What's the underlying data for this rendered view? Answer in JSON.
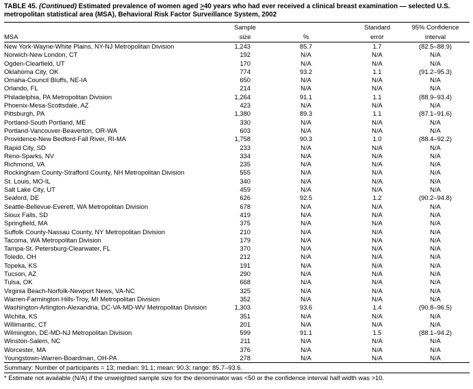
{
  "title": {
    "label": "TABLE 45.",
    "continued": "(Continued)",
    "before_ge": " Estimated prevalence of women aged ",
    "ge": ">",
    "after_ge": "40 years who had ever received a clinical breast examination — selected U.S. metropolitan statistical area (MSA), Behavioral Risk Factor Surveillance System, 2002"
  },
  "table": {
    "header": {
      "msa": "MSA",
      "sample_line1": "Sample",
      "sample_line2": "size",
      "percent": "%",
      "se_line1": "Standard",
      "se_line2": "error",
      "ci_line1": "95% Confidence",
      "ci_line2": "interval"
    },
    "rows": [
      {
        "msa": "New York-Wayne-White Plains, NY-NJ Metropolitan Division",
        "n": "1,243",
        "pct": "85.7",
        "se": "1.7",
        "ci": "(82.5–88.9)"
      },
      {
        "msa": "Norwich-New London, CT",
        "n": "192",
        "pct": "N/A",
        "se": "N/A",
        "ci": "N/A"
      },
      {
        "msa": "Ogden-Clearfield, UT",
        "n": "170",
        "pct": "N/A",
        "se": "N/A",
        "ci": "N/A"
      },
      {
        "msa": "Oklahoma City, OK",
        "n": "774",
        "pct": "93.2",
        "se": "1.1",
        "ci": "(91.2–95.3)"
      },
      {
        "msa": "Omaha-Council Bluffs, NE-IA",
        "n": "650",
        "pct": "N/A",
        "se": "N/A",
        "ci": "N/A"
      },
      {
        "msa": "Orlando, FL",
        "n": "214",
        "pct": "N/A",
        "se": "N/A",
        "ci": "N/A"
      },
      {
        "msa": "Philadelphia, PA Metropolitan Division",
        "n": "1,264",
        "pct": "91.1",
        "se": "1.1",
        "ci": "(88.9–93.4)"
      },
      {
        "msa": "Phoenix-Mesa-Scottsdale, AZ",
        "n": "423",
        "pct": "N/A",
        "se": "N/A",
        "ci": "N/A"
      },
      {
        "msa": "Pittsburgh, PA",
        "n": "1,380",
        "pct": "89.3",
        "se": "1.1",
        "ci": "(87.1–91.6)"
      },
      {
        "msa": "Portland-South Portland, ME",
        "n": "330",
        "pct": "N/A",
        "se": "N/A",
        "ci": "N/A"
      },
      {
        "msa": "Portland-Vancouver-Beaverton, OR-WA",
        "n": "603",
        "pct": "N/A",
        "se": "N/A",
        "ci": "N/A"
      },
      {
        "msa": "Providence-New Bedford-Fall River, RI-MA",
        "n": "1,758",
        "pct": "90.3",
        "se": "1.0",
        "ci": "(88.4–92.2)"
      },
      {
        "msa": "Rapid City, SD",
        "n": "233",
        "pct": "N/A",
        "se": "N/A",
        "ci": "N/A"
      },
      {
        "msa": "Reno-Sparks, NV",
        "n": "334",
        "pct": "N/A",
        "se": "N/A",
        "ci": "N/A"
      },
      {
        "msa": "Richmond, VA",
        "n": "235",
        "pct": "N/A",
        "se": "N/A",
        "ci": "N/A"
      },
      {
        "msa": "Rockingham County-Strafford County, NH Metropolitan Division",
        "n": "555",
        "pct": "N/A",
        "se": "N/A",
        "ci": "N/A"
      },
      {
        "msa": "St. Louis, MO-IL",
        "n": "340",
        "pct": "N/A",
        "se": "N/A",
        "ci": "N/A"
      },
      {
        "msa": "Salt Lake City, UT",
        "n": "459",
        "pct": "N/A",
        "se": "N/A",
        "ci": "N/A"
      },
      {
        "msa": "Seaford, DE",
        "n": "626",
        "pct": "92.5",
        "se": "1.2",
        "ci": "(90.2–94.8)"
      },
      {
        "msa": "Seattle-Bellevue-Everett, WA Metropolitan Division",
        "n": "678",
        "pct": "N/A",
        "se": "N/A",
        "ci": "N/A"
      },
      {
        "msa": "Sioux Falls, SD",
        "n": "419",
        "pct": "N/A",
        "se": "N/A",
        "ci": "N/A"
      },
      {
        "msa": "Springfield, MA",
        "n": "375",
        "pct": "N/A",
        "se": "N/A",
        "ci": "N/A"
      },
      {
        "msa": "Suffolk County-Nassau County, NY Metropolitan Division",
        "n": "210",
        "pct": "N/A",
        "se": "N/A",
        "ci": "N/A"
      },
      {
        "msa": "Tacoma, WA Metropolitan Division",
        "n": "179",
        "pct": "N/A",
        "se": "N/A",
        "ci": "N/A"
      },
      {
        "msa": "Tampa-St. Petersburg-Clearwater, FL",
        "n": "370",
        "pct": "N/A",
        "se": "N/A",
        "ci": "N/A"
      },
      {
        "msa": "Toledo, OH",
        "n": "212",
        "pct": "N/A",
        "se": "N/A",
        "ci": "N/A"
      },
      {
        "msa": "Topeka, KS",
        "n": "191",
        "pct": "N/A",
        "se": "N/A",
        "ci": "N/A"
      },
      {
        "msa": "Tucson, AZ",
        "n": "290",
        "pct": "N/A",
        "se": "N/A",
        "ci": "N/A"
      },
      {
        "msa": "Tulsa, OK",
        "n": "668",
        "pct": "N/A",
        "se": "N/A",
        "ci": "N/A"
      },
      {
        "msa": "Virginia Beach-Norfolk-Newport News, VA-NC",
        "n": "325",
        "pct": "N/A",
        "se": "N/A",
        "ci": "N/A"
      },
      {
        "msa": "Warren-Farmington Hills-Troy, MI Metropolitan Division",
        "n": "352",
        "pct": "N/A",
        "se": "N/A",
        "ci": "N/A"
      },
      {
        "msa": "Washington-Arlington-Alexandria, DC-VA-MD-WV Metropolitan Division",
        "n": "1,303",
        "pct": "93.6",
        "se": "1.4",
        "ci": "(90.8–96.5)"
      },
      {
        "msa": "Wichita, KS",
        "n": "351",
        "pct": "N/A",
        "se": "N/A",
        "ci": "N/A"
      },
      {
        "msa": "Willimantic, CT",
        "n": "201",
        "pct": "N/A",
        "se": "N/A",
        "ci": "N/A"
      },
      {
        "msa": "Wilmington, DE-MD-NJ Metropolitan Division",
        "n": "599",
        "pct": "91.1",
        "se": "1.5",
        "ci": "(88.1–94.2)"
      },
      {
        "msa": "Winston-Salem, NC",
        "n": "211",
        "pct": "N/A",
        "se": "N/A",
        "ci": "N/A"
      },
      {
        "msa": "Worcester, MA",
        "n": "376",
        "pct": "N/A",
        "se": "N/A",
        "ci": "N/A"
      },
      {
        "msa": "Youngstown-Warren-Boardman, OH-PA",
        "n": "278",
        "pct": "N/A",
        "se": "N/A",
        "ci": "N/A"
      }
    ]
  },
  "summary": "Summary: Number of participants = 13; median: 91.1; mean: 90.3; range: 85.7–93.6.",
  "footnote": "* Estimate not available (N/A) if the unweighted sample size for the denominator was <50 or the confidence interval half width was >10."
}
